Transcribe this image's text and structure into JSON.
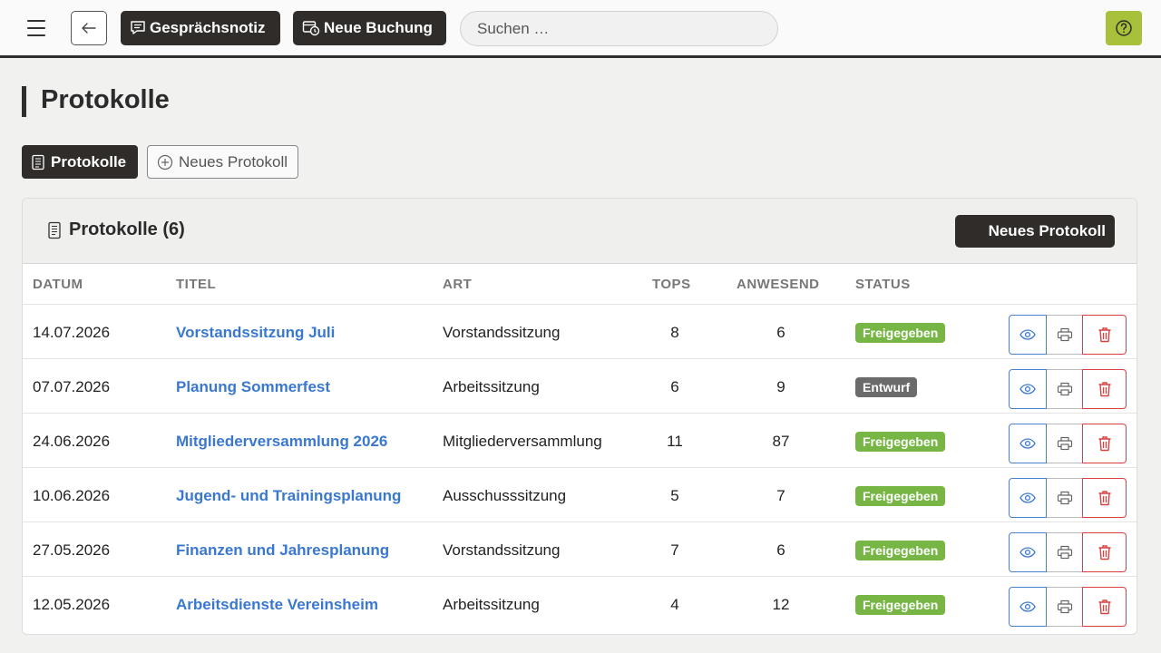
{
  "topbar": {
    "notiz_label": "Gesprächsnotiz",
    "buchung_label": "Neue Buchung",
    "search_placeholder": "Suchen …"
  },
  "page": {
    "title": "Protokolle"
  },
  "tabs": {
    "active_label": "Protokolle",
    "new_label": "Neues Protokoll"
  },
  "card": {
    "title": "Protokolle (6)",
    "new_button_label": "Neues Protokoll",
    "columns": [
      "DATUM",
      "TITEL",
      "ART",
      "TOPS",
      "ANWESEND",
      "STATUS"
    ]
  },
  "rows": [
    {
      "datum": "14.07.2026",
      "titel": "Vorstandssitzung Juli",
      "art": "Vorstandssitzung",
      "tops": "8",
      "anwesend": "6",
      "status": "Freigegeben"
    },
    {
      "datum": "07.07.2026",
      "titel": "Planung Sommerfest",
      "art": "Arbeitssitzung",
      "tops": "6",
      "anwesend": "9",
      "status": "Entwurf"
    },
    {
      "datum": "24.06.2026",
      "titel": "Mitgliederversammlung 2026",
      "art": "Mitgliederversammlung",
      "tops": "11",
      "anwesend": "87",
      "status": "Freigegeben"
    },
    {
      "datum": "10.06.2026",
      "titel": "Jugend- und Trainingsplanung",
      "art": "Ausschusssitzung",
      "tops": "5",
      "anwesend": "7",
      "status": "Freigegeben"
    },
    {
      "datum": "27.05.2026",
      "titel": "Finanzen und Jahresplanung",
      "art": "Vorstandssitzung",
      "tops": "7",
      "anwesend": "6",
      "status": "Freigegeben"
    },
    {
      "datum": "12.05.2026",
      "titel": "Arbeitsdienste Vereinsheim",
      "art": "Arbeitssitzung",
      "tops": "4",
      "anwesend": "12",
      "status": "Freigegeben"
    }
  ],
  "colors": {
    "accent_dark": "#2f2c29",
    "link_blue": "#3a78d0",
    "status_ok": "#77b545",
    "status_draft": "#6b6b6b",
    "help_green": "#a7c13b",
    "delete_red": "#d94040"
  },
  "icons": {
    "menu": "hamburger-icon",
    "back": "arrow-left-icon",
    "notiz": "note-icon",
    "buchung": "booking-icon",
    "help": "question-icon",
    "list": "document-list-icon",
    "plus": "plus-circle-icon",
    "view": "eye-icon",
    "print": "printer-icon",
    "delete": "trash-icon"
  }
}
